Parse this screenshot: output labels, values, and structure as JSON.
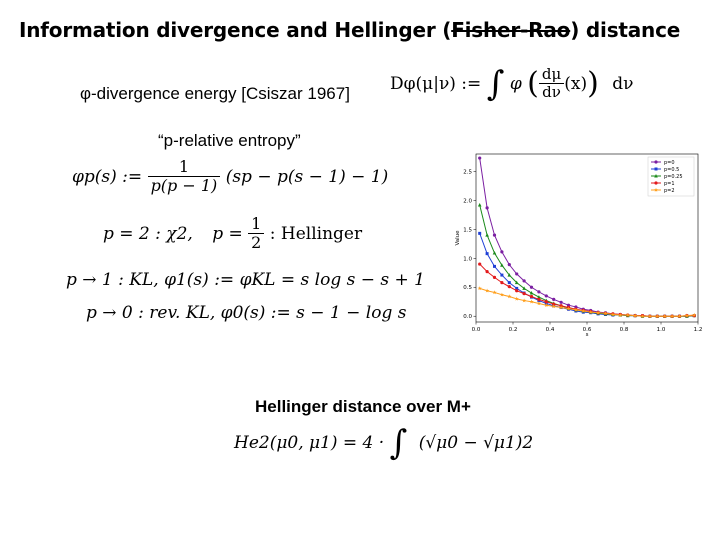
{
  "slide": {
    "title_prefix": "Information divergence and Hellinger (",
    "title_struck": "Fisher-Rao",
    "title_suffix": ") distance"
  },
  "phi_div": {
    "label": "φ-divergence energy [Csiszar 1967]",
    "lhs": "Dφ(μ|ν) :=",
    "integral": "∫",
    "phi": "φ",
    "frac_num": "dμ",
    "frac_den": "dν",
    "arg": "(x)",
    "measure": "dν"
  },
  "p_entropy": {
    "label": "“p-relative entropy”",
    "lhs": "φp(s) :=",
    "frac_num": "1",
    "frac_den": "p(p − 1)",
    "rhs": "(sp − p(s − 1) − 1)"
  },
  "cases": {
    "line1_a": "p = 2 : χ2,",
    "line1_b": "p =",
    "line1_frac_num": "1",
    "line1_frac_den": "2",
    "line1_c": ": Hellinger",
    "line2": "p → 1 : KL,  φ1(s) := φKL = s log s − s + 1",
    "line3": "p → 0 : rev. KL,  φ0(s) := s − 1 − log s"
  },
  "hellinger": {
    "title": "Hellinger distance over M+",
    "lhs": "He2(μ0, μ1) = 4 ·",
    "integral": "∫",
    "rhs": "(√μ0 − √μ1)2"
  },
  "chart_data": {
    "type": "line",
    "title": "",
    "xlabel": "s",
    "ylabel": "Value",
    "xlim": [
      0.0,
      1.2
    ],
    "ylim": [
      -0.1,
      2.8
    ],
    "xticks": [
      "0.0",
      "0.2",
      "0.4",
      "0.6",
      "0.8",
      "1.0",
      "1.2"
    ],
    "yticks": [
      "0.0",
      "0.5",
      "1.0",
      "1.5",
      "2.0",
      "2.5"
    ],
    "legend_position": "top-right",
    "grid": false,
    "x": [
      0.02,
      0.06,
      0.1,
      0.14,
      0.18,
      0.22,
      0.26,
      0.3,
      0.34,
      0.38,
      0.42,
      0.46,
      0.5,
      0.54,
      0.58,
      0.62,
      0.66,
      0.7,
      0.74,
      0.78,
      0.82,
      0.86,
      0.9,
      0.94,
      0.98,
      1.02,
      1.06,
      1.1,
      1.14,
      1.18
    ],
    "series": [
      {
        "name": "p=0",
        "color": "#7b1fa2",
        "marker": "circle",
        "values": [
          2.73,
          1.87,
          1.4,
          1.11,
          0.89,
          0.73,
          0.61,
          0.5,
          0.42,
          0.35,
          0.29,
          0.24,
          0.19,
          0.16,
          0.12,
          0.1,
          0.07,
          0.06,
          0.04,
          0.03,
          0.02,
          0.01,
          0.01,
          0.0,
          0.0,
          0.0,
          0.0,
          0.0,
          0.01,
          0.01
        ]
      },
      {
        "name": "p=0.5",
        "color": "#1f3fd6",
        "marker": "square",
        "values": [
          1.43,
          1.08,
          0.86,
          0.71,
          0.58,
          0.48,
          0.4,
          0.33,
          0.27,
          0.22,
          0.18,
          0.15,
          0.12,
          0.09,
          0.07,
          0.06,
          0.04,
          0.03,
          0.02,
          0.02,
          0.01,
          0.01,
          0.0,
          0.0,
          0.0,
          0.0,
          0.0,
          0.0,
          0.0,
          0.01
        ]
      },
      {
        "name": "p=0.25",
        "color": "#1a8a1a",
        "marker": "triangle",
        "values": [
          1.92,
          1.4,
          1.09,
          0.88,
          0.71,
          0.58,
          0.48,
          0.4,
          0.33,
          0.27,
          0.22,
          0.18,
          0.14,
          0.11,
          0.09,
          0.07,
          0.05,
          0.04,
          0.03,
          0.02,
          0.01,
          0.01,
          0.0,
          0.0,
          0.0,
          0.0,
          0.0,
          0.0,
          0.0,
          0.01
        ]
      },
      {
        "name": "p=1",
        "color": "#e31a1c",
        "marker": "circle",
        "values": [
          0.9,
          0.77,
          0.67,
          0.58,
          0.51,
          0.44,
          0.39,
          0.34,
          0.29,
          0.25,
          0.21,
          0.18,
          0.15,
          0.12,
          0.1,
          0.08,
          0.06,
          0.05,
          0.04,
          0.03,
          0.02,
          0.01,
          0.01,
          0.0,
          0.0,
          0.0,
          0.0,
          0.0,
          0.01,
          0.01
        ]
      },
      {
        "name": "p=2",
        "color": "#ff9f1c",
        "marker": "star",
        "values": [
          0.48,
          0.44,
          0.41,
          0.37,
          0.34,
          0.3,
          0.27,
          0.25,
          0.22,
          0.19,
          0.17,
          0.15,
          0.13,
          0.11,
          0.09,
          0.07,
          0.06,
          0.05,
          0.03,
          0.02,
          0.02,
          0.01,
          0.0,
          0.0,
          0.0,
          0.0,
          0.0,
          0.0,
          0.01,
          0.02
        ]
      }
    ]
  }
}
